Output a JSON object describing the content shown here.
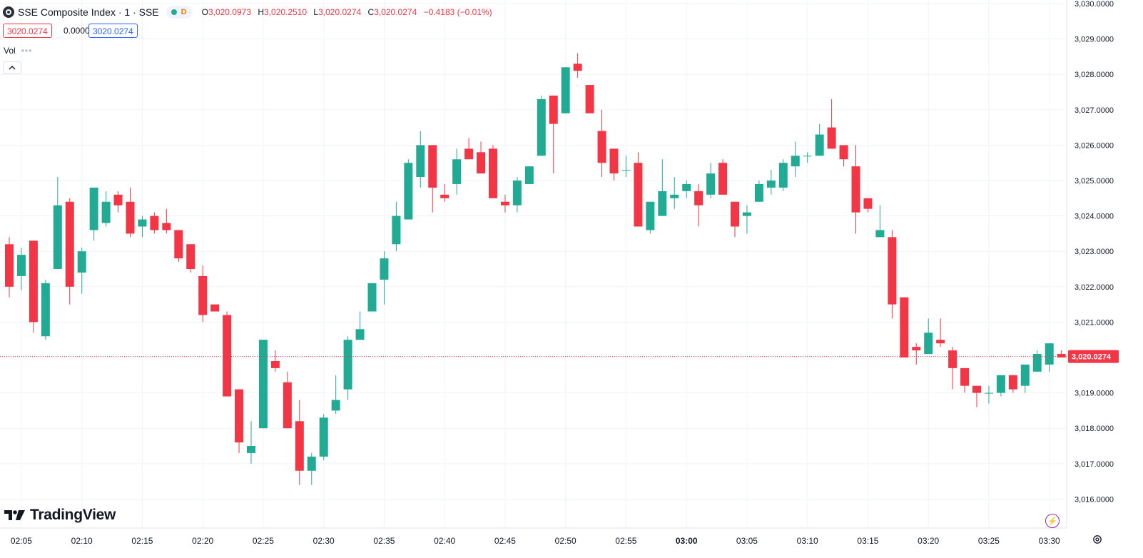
{
  "legend": {
    "symbol_title": "SSE Composite Index · 1 · SSE",
    "pill_label": "D",
    "open_label": "O",
    "open_value": "3,020.0973",
    "high_label": "H",
    "high_value": "3,020.2510",
    "low_label": "L",
    "low_value": "3,020.0274",
    "close_label": "C",
    "close_value": "3,020.0274",
    "change": "−0.4183 (−0.01%)"
  },
  "price_boxes": {
    "bid": "3020.0274",
    "spread": "0.0000",
    "ask": "3020.0274"
  },
  "volume_label": "Vol",
  "brand": "TradingView",
  "colors": {
    "up": "#22ab94",
    "down": "#f23645",
    "last_price_line": "#f23645",
    "grid": "#f0f3fa",
    "axis_text": "#131722"
  },
  "chart_data": {
    "type": "candlestick",
    "last_price": 3020.0274,
    "last_price_label": "3,020.0274",
    "ylim": [
      3015.5,
      3030.0
    ],
    "y_ticks": [
      3016.0,
      3017.0,
      3018.0,
      3019.0,
      3020.0,
      3021.0,
      3022.0,
      3023.0,
      3024.0,
      3025.0,
      3026.0,
      3027.0,
      3028.0,
      3029.0,
      3030.0
    ],
    "y_tick_labels": [
      "3,016.0000",
      "3,017.0000",
      "3,018.0000",
      "3,019.0000",
      "3,020.0000",
      "3,021.0000",
      "3,022.0000",
      "3,023.0000",
      "3,024.0000",
      "3,025.0000",
      "3,026.0000",
      "3,027.0000",
      "3,028.0000",
      "3,029.0000",
      "3,030.0000"
    ],
    "x_tick_labels": [
      "02:05",
      "02:10",
      "02:15",
      "02:20",
      "02:25",
      "02:30",
      "02:35",
      "02:40",
      "02:45",
      "02:50",
      "02:55",
      "03:00",
      "03:05",
      "03:10",
      "03:15",
      "03:20",
      "03:25",
      "03:30"
    ],
    "x_tick_start_time": "02:05",
    "bars": [
      {
        "t": "02:04",
        "o": 3023.2,
        "h": 3023.4,
        "l": 3021.7,
        "c": 3022.0
      },
      {
        "t": "02:05",
        "o": 3022.3,
        "h": 3023.1,
        "l": 3021.9,
        "c": 3022.9
      },
      {
        "t": "02:06",
        "o": 3023.3,
        "h": 3023.3,
        "l": 3020.7,
        "c": 3021.0
      },
      {
        "t": "02:07",
        "o": 3020.6,
        "h": 3022.2,
        "l": 3020.5,
        "c": 3022.1
      },
      {
        "t": "02:08",
        "o": 3022.5,
        "h": 3025.1,
        "l": 3022.5,
        "c": 3024.3
      },
      {
        "t": "02:09",
        "o": 3024.4,
        "h": 3024.5,
        "l": 3021.5,
        "c": 3022.0
      },
      {
        "t": "02:10",
        "o": 3022.4,
        "h": 3023.1,
        "l": 3021.8,
        "c": 3023.0
      },
      {
        "t": "02:11",
        "o": 3023.6,
        "h": 3024.8,
        "l": 3023.3,
        "c": 3024.8
      },
      {
        "t": "02:12",
        "o": 3023.8,
        "h": 3024.7,
        "l": 3023.7,
        "c": 3024.4
      },
      {
        "t": "02:13",
        "o": 3024.6,
        "h": 3024.7,
        "l": 3024.1,
        "c": 3024.3
      },
      {
        "t": "02:14",
        "o": 3024.4,
        "h": 3024.8,
        "l": 3023.4,
        "c": 3023.5
      },
      {
        "t": "02:15",
        "o": 3023.7,
        "h": 3024.0,
        "l": 3023.4,
        "c": 3023.9
      },
      {
        "t": "02:16",
        "o": 3024.0,
        "h": 3024.1,
        "l": 3023.5,
        "c": 3023.6
      },
      {
        "t": "02:17",
        "o": 3023.8,
        "h": 3024.2,
        "l": 3023.5,
        "c": 3023.6
      },
      {
        "t": "02:18",
        "o": 3023.6,
        "h": 3023.6,
        "l": 3022.7,
        "c": 3022.8
      },
      {
        "t": "02:19",
        "o": 3023.2,
        "h": 3023.2,
        "l": 3022.4,
        "c": 3022.5
      },
      {
        "t": "02:20",
        "o": 3022.3,
        "h": 3022.6,
        "l": 3021.0,
        "c": 3021.2
      },
      {
        "t": "02:21",
        "o": 3021.5,
        "h": 3021.5,
        "l": 3021.3,
        "c": 3021.3
      },
      {
        "t": "02:22",
        "o": 3021.2,
        "h": 3021.3,
        "l": 3018.9,
        "c": 3018.9
      },
      {
        "t": "02:23",
        "o": 3019.1,
        "h": 3019.1,
        "l": 3017.3,
        "c": 3017.6
      },
      {
        "t": "02:24",
        "o": 3017.3,
        "h": 3018.2,
        "l": 3017.0,
        "c": 3017.5
      },
      {
        "t": "02:25",
        "o": 3018.0,
        "h": 3020.5,
        "l": 3018.0,
        "c": 3020.5
      },
      {
        "t": "02:26",
        "o": 3019.9,
        "h": 3020.2,
        "l": 3019.6,
        "c": 3019.7
      },
      {
        "t": "02:27",
        "o": 3019.3,
        "h": 3019.6,
        "l": 3018.0,
        "c": 3018.0
      },
      {
        "t": "02:28",
        "o": 3018.2,
        "h": 3018.8,
        "l": 3016.4,
        "c": 3016.8
      },
      {
        "t": "02:29",
        "o": 3016.8,
        "h": 3017.3,
        "l": 3016.4,
        "c": 3017.2
      },
      {
        "t": "02:30",
        "o": 3017.2,
        "h": 3018.4,
        "l": 3017.1,
        "c": 3018.3
      },
      {
        "t": "02:31",
        "o": 3018.5,
        "h": 3019.5,
        "l": 3018.4,
        "c": 3018.8
      },
      {
        "t": "02:32",
        "o": 3019.1,
        "h": 3020.6,
        "l": 3018.8,
        "c": 3020.5
      },
      {
        "t": "02:33",
        "o": 3020.5,
        "h": 3021.3,
        "l": 3020.5,
        "c": 3020.8
      },
      {
        "t": "02:34",
        "o": 3021.3,
        "h": 3022.1,
        "l": 3021.3,
        "c": 3022.1
      },
      {
        "t": "02:35",
        "o": 3022.2,
        "h": 3023.0,
        "l": 3021.5,
        "c": 3022.8
      },
      {
        "t": "02:36",
        "o": 3023.2,
        "h": 3024.4,
        "l": 3023.0,
        "c": 3024.0
      },
      {
        "t": "02:37",
        "o": 3023.9,
        "h": 3025.6,
        "l": 3023.9,
        "c": 3025.5
      },
      {
        "t": "02:38",
        "o": 3025.1,
        "h": 3026.4,
        "l": 3024.8,
        "c": 3026.0
      },
      {
        "t": "02:39",
        "o": 3026.0,
        "h": 3026.0,
        "l": 3024.1,
        "c": 3024.8
      },
      {
        "t": "02:40",
        "o": 3024.6,
        "h": 3024.9,
        "l": 3024.4,
        "c": 3024.5
      },
      {
        "t": "02:41",
        "o": 3024.9,
        "h": 3025.9,
        "l": 3024.6,
        "c": 3025.6
      },
      {
        "t": "02:42",
        "o": 3025.9,
        "h": 3026.2,
        "l": 3025.6,
        "c": 3025.6
      },
      {
        "t": "02:43",
        "o": 3025.8,
        "h": 3026.1,
        "l": 3025.2,
        "c": 3025.2
      },
      {
        "t": "02:44",
        "o": 3025.9,
        "h": 3026.0,
        "l": 3024.5,
        "c": 3024.5
      },
      {
        "t": "02:45",
        "o": 3024.4,
        "h": 3024.6,
        "l": 3024.1,
        "c": 3024.3
      },
      {
        "t": "02:46",
        "o": 3024.3,
        "h": 3025.1,
        "l": 3024.1,
        "c": 3025.0
      },
      {
        "t": "02:47",
        "o": 3024.9,
        "h": 3025.4,
        "l": 3024.9,
        "c": 3025.4
      },
      {
        "t": "02:48",
        "o": 3025.7,
        "h": 3027.4,
        "l": 3025.7,
        "c": 3027.3
      },
      {
        "t": "02:49",
        "o": 3027.4,
        "h": 3027.4,
        "l": 3025.2,
        "c": 3026.6
      },
      {
        "t": "02:50",
        "o": 3026.9,
        "h": 3028.2,
        "l": 3026.9,
        "c": 3028.2
      },
      {
        "t": "02:51",
        "o": 3028.3,
        "h": 3028.6,
        "l": 3027.9,
        "c": 3028.1
      },
      {
        "t": "02:52",
        "o": 3027.7,
        "h": 3027.7,
        "l": 3026.9,
        "c": 3026.9
      },
      {
        "t": "02:53",
        "o": 3026.4,
        "h": 3027.0,
        "l": 3025.1,
        "c": 3025.5
      },
      {
        "t": "02:54",
        "o": 3025.9,
        "h": 3025.9,
        "l": 3025.0,
        "c": 3025.2
      },
      {
        "t": "02:55",
        "o": 3025.3,
        "h": 3025.7,
        "l": 3025.1,
        "c": 3025.3
      },
      {
        "t": "02:56",
        "o": 3025.5,
        "h": 3025.8,
        "l": 3023.7,
        "c": 3023.7
      },
      {
        "t": "02:57",
        "o": 3023.6,
        "h": 3024.4,
        "l": 3023.5,
        "c": 3024.4
      },
      {
        "t": "02:58",
        "o": 3024.0,
        "h": 3025.6,
        "l": 3024.0,
        "c": 3024.7
      },
      {
        "t": "02:59",
        "o": 3024.5,
        "h": 3025.1,
        "l": 3024.2,
        "c": 3024.6
      },
      {
        "t": "03:00",
        "o": 3024.7,
        "h": 3025.0,
        "l": 3024.5,
        "c": 3024.9
      },
      {
        "t": "03:01",
        "o": 3024.7,
        "h": 3024.9,
        "l": 3023.7,
        "c": 3024.3
      },
      {
        "t": "03:02",
        "o": 3024.6,
        "h": 3025.5,
        "l": 3024.5,
        "c": 3025.2
      },
      {
        "t": "03:03",
        "o": 3025.5,
        "h": 3025.6,
        "l": 3024.6,
        "c": 3024.6
      },
      {
        "t": "03:04",
        "o": 3024.4,
        "h": 3024.4,
        "l": 3023.4,
        "c": 3023.7
      },
      {
        "t": "03:05",
        "o": 3024.0,
        "h": 3024.3,
        "l": 3023.5,
        "c": 3024.1
      },
      {
        "t": "03:06",
        "o": 3024.4,
        "h": 3025.0,
        "l": 3024.4,
        "c": 3024.9
      },
      {
        "t": "03:07",
        "o": 3024.8,
        "h": 3025.3,
        "l": 3024.6,
        "c": 3025.0
      },
      {
        "t": "03:08",
        "o": 3024.8,
        "h": 3025.6,
        "l": 3024.7,
        "c": 3025.5
      },
      {
        "t": "03:09",
        "o": 3025.4,
        "h": 3026.1,
        "l": 3025.1,
        "c": 3025.7
      },
      {
        "t": "03:10",
        "o": 3025.7,
        "h": 3025.8,
        "l": 3025.5,
        "c": 3025.7
      },
      {
        "t": "03:11",
        "o": 3025.7,
        "h": 3026.6,
        "l": 3025.7,
        "c": 3026.3
      },
      {
        "t": "03:12",
        "o": 3026.5,
        "h": 3027.3,
        "l": 3025.9,
        "c": 3025.9
      },
      {
        "t": "03:13",
        "o": 3026.0,
        "h": 3026.0,
        "l": 3025.4,
        "c": 3025.6
      },
      {
        "t": "03:14",
        "o": 3025.4,
        "h": 3026.0,
        "l": 3023.5,
        "c": 3024.1
      },
      {
        "t": "03:15",
        "o": 3024.5,
        "h": 3024.5,
        "l": 3024.1,
        "c": 3024.2
      },
      {
        "t": "03:16",
        "o": 3023.4,
        "h": 3024.3,
        "l": 3023.4,
        "c": 3023.6
      },
      {
        "t": "03:17",
        "o": 3023.4,
        "h": 3023.6,
        "l": 3021.1,
        "c": 3021.5
      },
      {
        "t": "03:18",
        "o": 3021.7,
        "h": 3021.7,
        "l": 3020.0,
        "c": 3020.0
      },
      {
        "t": "03:19",
        "o": 3020.3,
        "h": 3020.4,
        "l": 3019.8,
        "c": 3020.2
      },
      {
        "t": "03:20",
        "o": 3020.1,
        "h": 3021.1,
        "l": 3020.1,
        "c": 3020.7
      },
      {
        "t": "03:21",
        "o": 3020.5,
        "h": 3021.1,
        "l": 3020.3,
        "c": 3020.4
      },
      {
        "t": "03:22",
        "o": 3020.2,
        "h": 3020.3,
        "l": 3019.1,
        "c": 3019.7
      },
      {
        "t": "03:23",
        "o": 3019.7,
        "h": 3019.7,
        "l": 3019.0,
        "c": 3019.2
      },
      {
        "t": "03:24",
        "o": 3019.2,
        "h": 3019.2,
        "l": 3018.6,
        "c": 3019.0
      },
      {
        "t": "03:25",
        "o": 3019.0,
        "h": 3019.2,
        "l": 3018.7,
        "c": 3019.0
      },
      {
        "t": "03:26",
        "o": 3019.0,
        "h": 3019.5,
        "l": 3018.9,
        "c": 3019.5
      },
      {
        "t": "03:27",
        "o": 3019.5,
        "h": 3019.5,
        "l": 3019.0,
        "c": 3019.1
      },
      {
        "t": "03:28",
        "o": 3019.2,
        "h": 3019.8,
        "l": 3019.0,
        "c": 3019.8
      },
      {
        "t": "03:29",
        "o": 3019.6,
        "h": 3020.2,
        "l": 3019.6,
        "c": 3020.1
      },
      {
        "t": "03:30",
        "o": 3019.8,
        "h": 3020.4,
        "l": 3019.6,
        "c": 3020.4
      },
      {
        "t": "03:31",
        "o": 3020.1,
        "h": 3020.2,
        "l": 3020.0,
        "c": 3020.0
      }
    ]
  }
}
